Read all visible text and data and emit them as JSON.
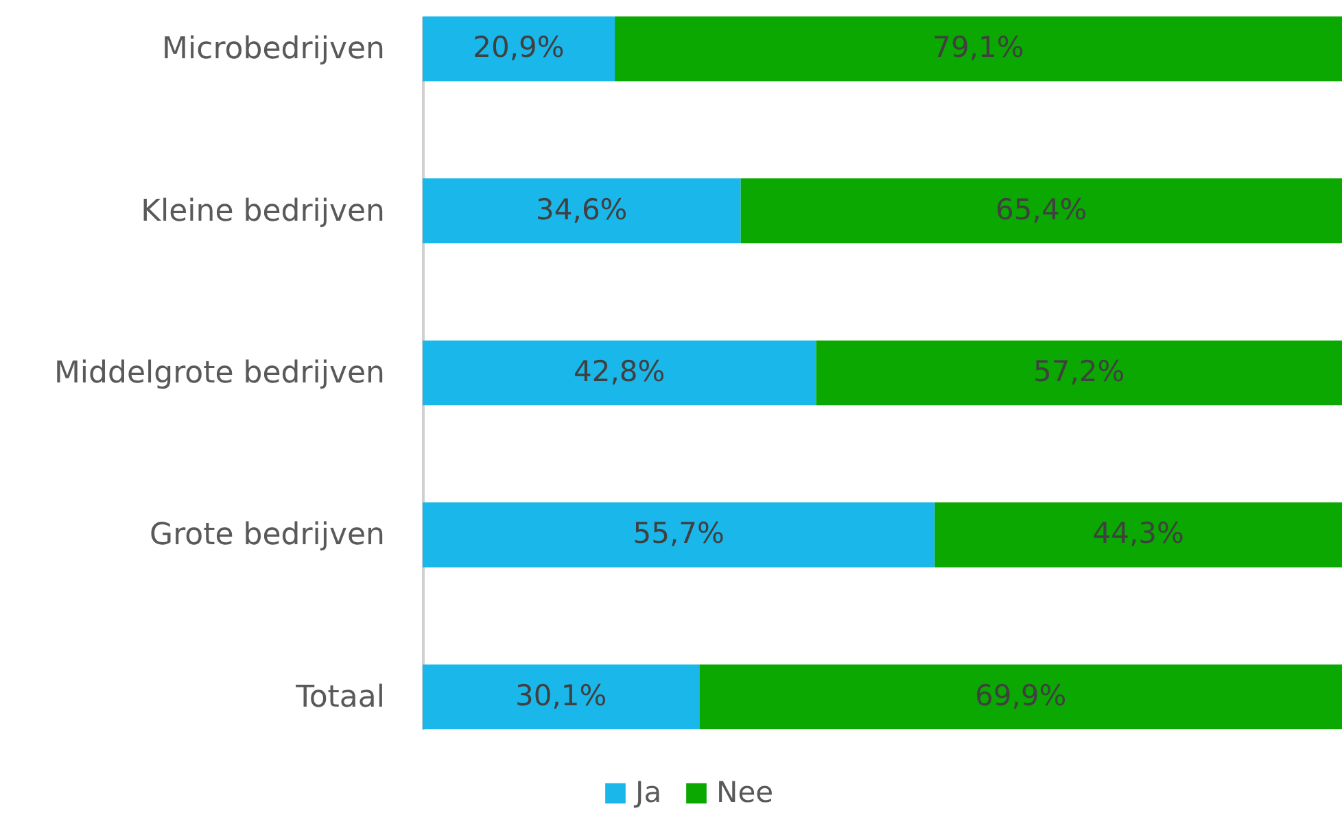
{
  "chart_data": {
    "type": "bar",
    "orientation": "horizontal",
    "stacked": true,
    "categories": [
      "Microbedrijven",
      "Kleine bedrijven",
      "Middelgrote bedrijven",
      "Grote bedrijven",
      "Totaal"
    ],
    "series": [
      {
        "name": "Ja",
        "color": "#1ab7ea",
        "values": [
          20.9,
          34.6,
          42.8,
          55.7,
          30.1
        ],
        "value_labels": [
          "20,9%",
          "34,6%",
          "42,8%",
          "55,7%",
          "30,1%"
        ]
      },
      {
        "name": "Nee",
        "color": "#0aa800",
        "values": [
          79.1,
          65.4,
          57.2,
          44.3,
          69.9
        ],
        "value_labels": [
          "79,1%",
          "65,4%",
          "57,2%",
          "44,3%",
          "69,9%"
        ]
      }
    ],
    "xlim": [
      0,
      100
    ],
    "tick_labels": "y",
    "legend": "bottom"
  }
}
